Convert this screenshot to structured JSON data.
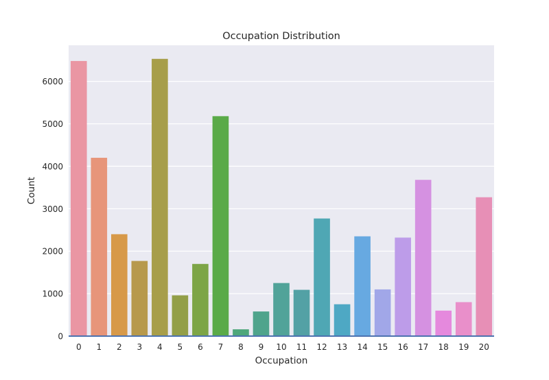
{
  "chart_data": {
    "type": "bar",
    "title": "Occupation Distribution",
    "xlabel": "Occupation",
    "ylabel": "Count",
    "categories": [
      "0",
      "1",
      "2",
      "3",
      "4",
      "5",
      "6",
      "7",
      "8",
      "9",
      "10",
      "11",
      "12",
      "13",
      "14",
      "15",
      "16",
      "17",
      "18",
      "19",
      "20"
    ],
    "values": [
      6480,
      4200,
      2400,
      1770,
      6530,
      960,
      1700,
      5180,
      160,
      580,
      1250,
      1090,
      2770,
      750,
      2350,
      1100,
      2320,
      3680,
      600,
      800,
      3270
    ],
    "ylim": [
      0,
      6850
    ],
    "yticks": [
      0,
      1000,
      2000,
      3000,
      4000,
      5000,
      6000
    ],
    "grid": true,
    "legend": "none",
    "colors": [
      "#ea96a3",
      "#e7957a",
      "#d79949",
      "#b7994c",
      "#a79e4a",
      "#939f48",
      "#7da547",
      "#5aaa48",
      "#4ea77b",
      "#4fa48c",
      "#51a399",
      "#53a1a5",
      "#4fa7b4",
      "#4ea8c4",
      "#67a9e1",
      "#a1a7e8",
      "#bd9ce9",
      "#d591e1",
      "#e589dd",
      "#e98fca",
      "#e78fb6"
    ],
    "background": "#eaeaf2",
    "baseline_color": "#4c72b0"
  }
}
